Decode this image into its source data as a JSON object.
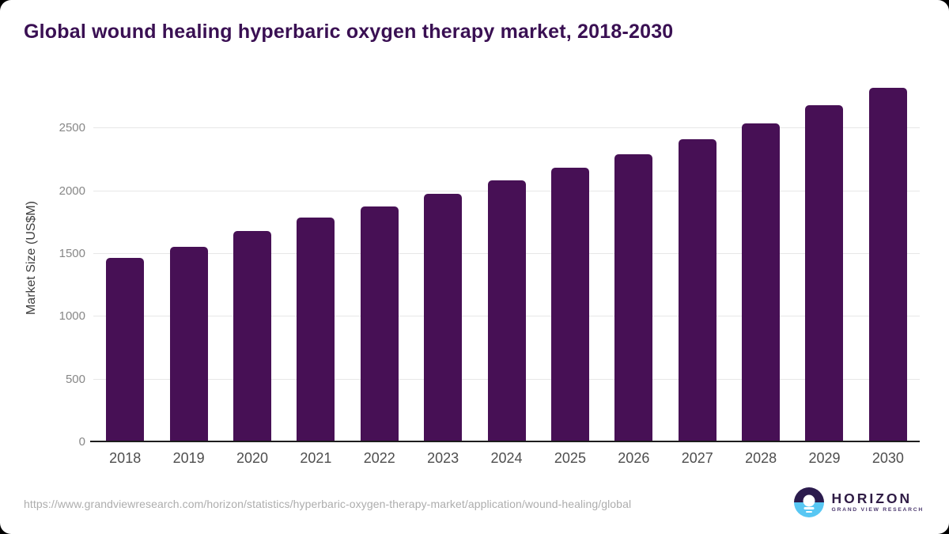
{
  "title": "Global wound healing hyperbaric oxygen therapy market, 2018-2030",
  "colors": {
    "bar": "#471055",
    "title_text": "#3a1053",
    "logo_navy": "#2b1b4d",
    "logo_blue": "#58c7f3",
    "logo_name_text": "#2f1c45",
    "logo_subtitle_text": "#4d3a70"
  },
  "chart_data": {
    "type": "bar",
    "title": "Global wound healing hyperbaric oxygen therapy market, 2018-2030",
    "categories": [
      "2018",
      "2019",
      "2020",
      "2021",
      "2022",
      "2023",
      "2024",
      "2025",
      "2026",
      "2027",
      "2028",
      "2029",
      "2030"
    ],
    "values": [
      1470,
      1557,
      1685,
      1788,
      1878,
      1979,
      2083,
      2185,
      2297,
      2415,
      2537,
      2686,
      2822
    ],
    "xlabel": "",
    "ylabel": "Market Size (US$M)",
    "yticks": [
      0,
      500,
      1000,
      1500,
      2000,
      2500
    ],
    "ylim": [
      0,
      2945
    ],
    "grid": true,
    "legend": false,
    "bar_color": "#471055"
  },
  "footer": {
    "source_url": "https://www.grandviewresearch.com/horizon/statistics/hyperbaric-oxygen-therapy-market/application/wound-healing/global",
    "logo": {
      "name": "HORIZON",
      "subtitle": "GRAND VIEW RESEARCH"
    }
  }
}
